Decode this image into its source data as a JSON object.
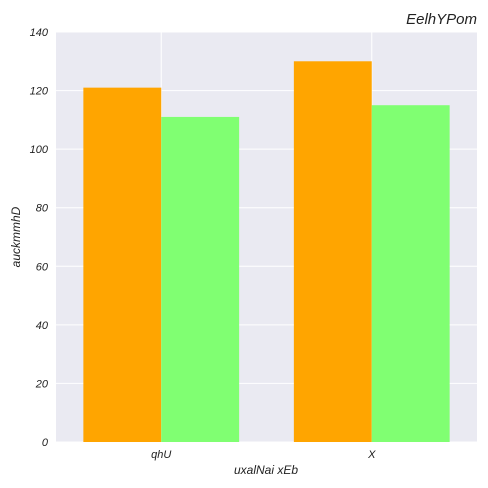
{
  "chart_data": {
    "type": "bar",
    "title": "EelhYPom",
    "xlabel": "uxalNai xEb",
    "ylabel": "auckmmhD",
    "categories": [
      "qhU",
      "X"
    ],
    "series": [
      {
        "values": [
          121,
          130
        ],
        "color": "#ffa500"
      },
      {
        "values": [
          111,
          115
        ],
        "color": "#80ff72"
      }
    ],
    "ylim": [
      0,
      140
    ],
    "yticks": [
      "0",
      "20",
      "40",
      "60",
      "80",
      "100",
      "120",
      "140"
    ],
    "grid": true,
    "background": "#eaeaf2"
  }
}
